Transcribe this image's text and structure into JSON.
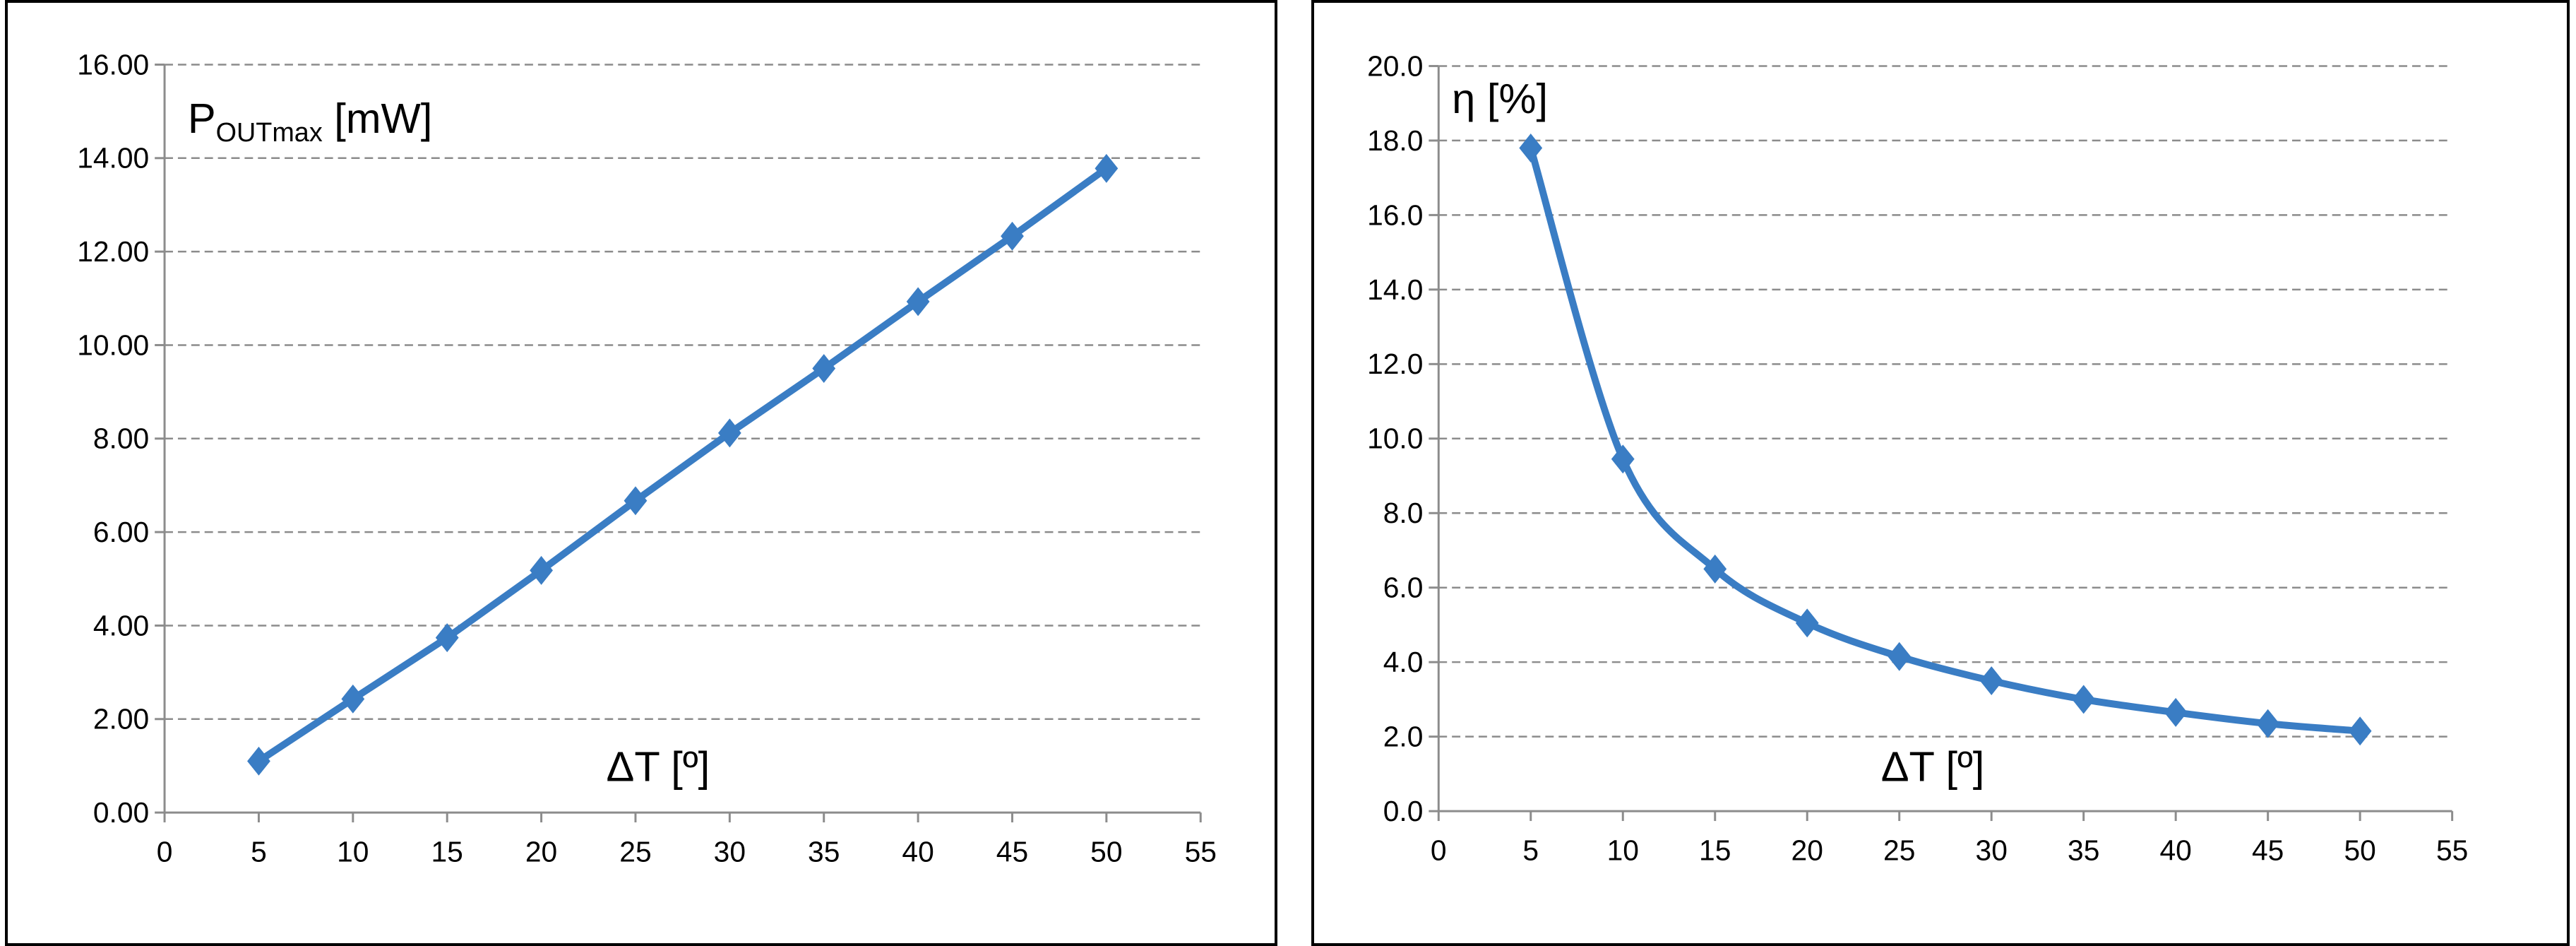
{
  "chart_data": [
    {
      "type": "line",
      "ylabel_main": "P",
      "ylabel_sub": "OUTmax",
      "ylabel_unit": " [mW]",
      "xlabel": "ΔT [º]",
      "xlim": [
        0,
        55
      ],
      "ylim": [
        0,
        16
      ],
      "x_ticks": [
        "0",
        "5",
        "10",
        "15",
        "20",
        "25",
        "30",
        "35",
        "40",
        "45",
        "50",
        "55"
      ],
      "y_ticks": [
        "0.00",
        "2.00",
        "4.00",
        "6.00",
        "8.00",
        "10.00",
        "12.00",
        "14.00",
        "16.00"
      ],
      "grid": "horizontal dashed",
      "series": [
        {
          "x": [
            5,
            10,
            15,
            20,
            25,
            30,
            35,
            40,
            45,
            50
          ],
          "values": [
            1.1,
            2.43,
            3.74,
            5.18,
            6.67,
            8.12,
            9.5,
            10.93,
            12.33,
            13.78
          ],
          "marker": "diamond",
          "color": "#3a7dc4"
        }
      ]
    },
    {
      "type": "line",
      "ylabel": "η [%]",
      "xlabel": "ΔT [º]",
      "xlim": [
        0,
        55
      ],
      "ylim": [
        0,
        20
      ],
      "x_ticks": [
        "0",
        "5",
        "10",
        "15",
        "20",
        "25",
        "30",
        "35",
        "40",
        "45",
        "50",
        "55"
      ],
      "y_ticks": [
        "0.0",
        "2.0",
        "4.0",
        "6.0",
        "8.0",
        "10.0",
        "12.0",
        "14.0",
        "16.0",
        "18.0",
        "20.0"
      ],
      "grid": "horizontal dashed",
      "series": [
        {
          "x": [
            5,
            10,
            15,
            20,
            25,
            30,
            35,
            40,
            45,
            50
          ],
          "values": [
            17.8,
            9.45,
            6.5,
            5.05,
            4.15,
            3.5,
            3.0,
            2.65,
            2.35,
            2.15
          ],
          "marker": "diamond",
          "color": "#3a7dc4",
          "smooth": true
        }
      ]
    }
  ]
}
